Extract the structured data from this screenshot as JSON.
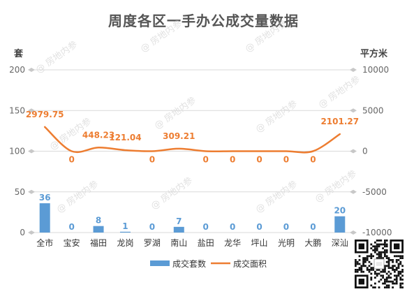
{
  "chart_data": {
    "type": "bar",
    "title": "周度各区一手办公成交量数据",
    "categories": [
      "全市",
      "宝安",
      "福田",
      "龙岗",
      "罗湖",
      "南山",
      "盐田",
      "龙华",
      "坪山",
      "光明",
      "大鹏",
      "深汕"
    ],
    "series": [
      {
        "name": "成交套数",
        "type": "bar",
        "axis": "left",
        "color": "#5b9bd5",
        "values": [
          36,
          0,
          8,
          1,
          0,
          7,
          0,
          0,
          0,
          0,
          0,
          20
        ]
      },
      {
        "name": "成交面积",
        "type": "line",
        "axis": "right",
        "color": "#ed7d31",
        "values": [
          2979.75,
          0,
          448.23,
          121.04,
          0,
          309.21,
          0,
          0,
          0,
          0,
          0,
          2101.27
        ]
      }
    ],
    "ylabel": "套",
    "y2label": "平方米",
    "ylim": [
      0,
      200
    ],
    "y2lim": [
      -10000,
      10000
    ],
    "yticks": [
      "0",
      "50",
      "100",
      "150",
      "200"
    ],
    "y2ticks": [
      "-10000",
      "-5000",
      "0",
      "5000",
      "10000"
    ],
    "grid": true,
    "legend": "bottom"
  },
  "watermark": "@ 房地内参",
  "icons": {
    "qr": "qr-code-icon"
  }
}
